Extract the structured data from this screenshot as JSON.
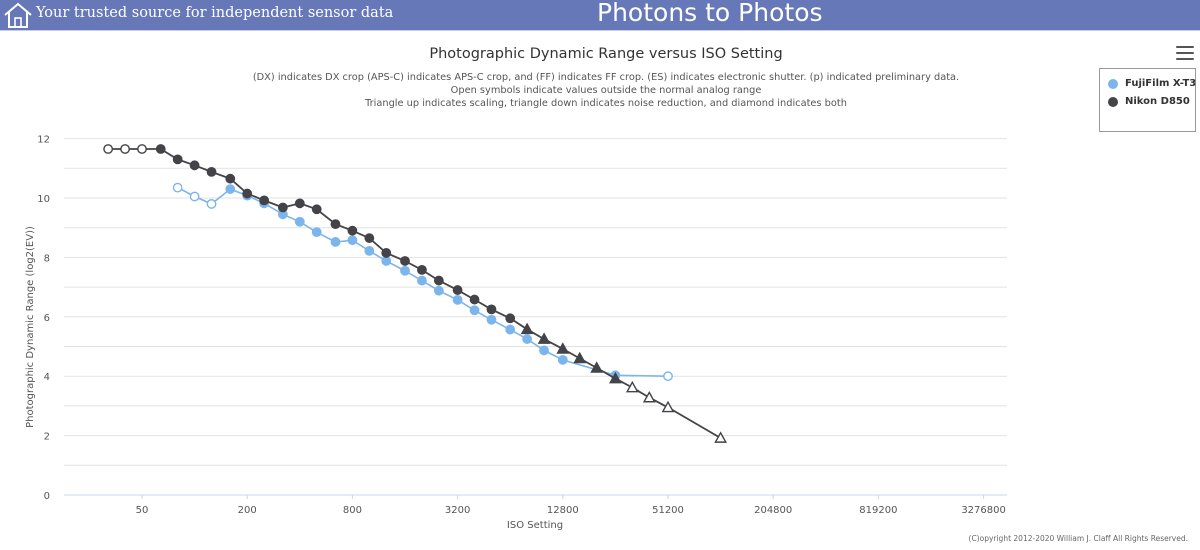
{
  "header": {
    "tagline": "Your trusted source for independent sensor data",
    "site_title": "Photons to Photos",
    "home_icon": "home-icon",
    "background_color": "#6678b8"
  },
  "menu_icon": "hamburger-menu-icon",
  "copyright": "(C)opyright 2012-2020 William J. Claff All Rights Reserved.",
  "chart_data": {
    "type": "line",
    "title": "Photographic Dynamic Range versus ISO Setting",
    "subtitle": [
      "(DX) indicates DX crop (APS-C) indicates APS-C crop, and (FF) indicates FF crop. (ES) indicates electronic shutter. (p) indicated preliminary data.",
      "Open symbols indicate values outside the normal analog range",
      "Triangle up indicates scaling, triangle down indicates noise reduction, and diamond indicates both"
    ],
    "xlabel": "ISO Setting",
    "ylabel": "Photographic Dynamic Range (log2(EV))",
    "x_scale": "log2",
    "x_ticks": [
      "50",
      "200",
      "800",
      "3200",
      "12800",
      "51200",
      "204800",
      "819200",
      "3276800"
    ],
    "y_ticks": [
      "0",
      "2",
      "4",
      "6",
      "8",
      "10",
      "12"
    ],
    "ylim": [
      0,
      12
    ],
    "grid": true,
    "legend_position": "top-right",
    "series": [
      {
        "name": "FujiFilm X-T3",
        "color": "#7cb5ec",
        "points": [
          {
            "iso": 80,
            "value": 10.35,
            "marker": "open-circle"
          },
          {
            "iso": 100,
            "value": 10.05,
            "marker": "open-circle"
          },
          {
            "iso": 125,
            "value": 9.8,
            "marker": "open-circle"
          },
          {
            "iso": 160,
            "value": 10.3,
            "marker": "circle"
          },
          {
            "iso": 200,
            "value": 10.08,
            "marker": "circle"
          },
          {
            "iso": 250,
            "value": 9.82,
            "marker": "circle"
          },
          {
            "iso": 320,
            "value": 9.45,
            "marker": "circle"
          },
          {
            "iso": 400,
            "value": 9.2,
            "marker": "circle"
          },
          {
            "iso": 500,
            "value": 8.85,
            "marker": "circle"
          },
          {
            "iso": 640,
            "value": 8.52,
            "marker": "circle"
          },
          {
            "iso": 800,
            "value": 8.58,
            "marker": "circle"
          },
          {
            "iso": 1000,
            "value": 8.22,
            "marker": "circle"
          },
          {
            "iso": 1250,
            "value": 7.88,
            "marker": "circle"
          },
          {
            "iso": 1600,
            "value": 7.55,
            "marker": "circle"
          },
          {
            "iso": 2000,
            "value": 7.22,
            "marker": "circle"
          },
          {
            "iso": 2500,
            "value": 6.88,
            "marker": "circle"
          },
          {
            "iso": 3200,
            "value": 6.57,
            "marker": "circle"
          },
          {
            "iso": 4000,
            "value": 6.22,
            "marker": "circle"
          },
          {
            "iso": 5000,
            "value": 5.9,
            "marker": "circle"
          },
          {
            "iso": 6400,
            "value": 5.57,
            "marker": "circle"
          },
          {
            "iso": 8000,
            "value": 5.25,
            "marker": "circle"
          },
          {
            "iso": 10000,
            "value": 4.87,
            "marker": "circle"
          },
          {
            "iso": 12800,
            "value": 4.55,
            "marker": "circle"
          },
          {
            "iso": 25600,
            "value": 4.03,
            "marker": "circle"
          },
          {
            "iso": 51200,
            "value": 4.0,
            "marker": "open-circle"
          }
        ]
      },
      {
        "name": "Nikon D850",
        "color": "#434348",
        "points": [
          {
            "iso": 32,
            "value": 11.65,
            "marker": "open-circle"
          },
          {
            "iso": 40,
            "value": 11.65,
            "marker": "open-circle"
          },
          {
            "iso": 50,
            "value": 11.65,
            "marker": "open-circle"
          },
          {
            "iso": 64,
            "value": 11.65,
            "marker": "circle"
          },
          {
            "iso": 80,
            "value": 11.3,
            "marker": "circle"
          },
          {
            "iso": 100,
            "value": 11.1,
            "marker": "circle"
          },
          {
            "iso": 125,
            "value": 10.88,
            "marker": "circle"
          },
          {
            "iso": 160,
            "value": 10.65,
            "marker": "circle"
          },
          {
            "iso": 200,
            "value": 10.15,
            "marker": "circle"
          },
          {
            "iso": 250,
            "value": 9.92,
            "marker": "circle"
          },
          {
            "iso": 320,
            "value": 9.68,
            "marker": "circle"
          },
          {
            "iso": 400,
            "value": 9.82,
            "marker": "circle"
          },
          {
            "iso": 500,
            "value": 9.62,
            "marker": "circle"
          },
          {
            "iso": 640,
            "value": 9.12,
            "marker": "circle"
          },
          {
            "iso": 800,
            "value": 8.9,
            "marker": "circle"
          },
          {
            "iso": 1000,
            "value": 8.65,
            "marker": "circle"
          },
          {
            "iso": 1250,
            "value": 8.15,
            "marker": "circle"
          },
          {
            "iso": 1600,
            "value": 7.88,
            "marker": "circle"
          },
          {
            "iso": 2000,
            "value": 7.58,
            "marker": "circle"
          },
          {
            "iso": 2500,
            "value": 7.22,
            "marker": "circle"
          },
          {
            "iso": 3200,
            "value": 6.9,
            "marker": "circle"
          },
          {
            "iso": 4000,
            "value": 6.58,
            "marker": "circle"
          },
          {
            "iso": 5000,
            "value": 6.25,
            "marker": "circle"
          },
          {
            "iso": 6400,
            "value": 5.95,
            "marker": "circle"
          },
          {
            "iso": 8000,
            "value": 5.58,
            "marker": "triangle-up"
          },
          {
            "iso": 10000,
            "value": 5.25,
            "marker": "triangle-up"
          },
          {
            "iso": 12800,
            "value": 4.92,
            "marker": "triangle-up"
          },
          {
            "iso": 16000,
            "value": 4.6,
            "marker": "triangle-up"
          },
          {
            "iso": 20000,
            "value": 4.28,
            "marker": "triangle-up"
          },
          {
            "iso": 25600,
            "value": 3.92,
            "marker": "triangle-up"
          },
          {
            "iso": 32000,
            "value": 3.62,
            "marker": "open-triangle-up"
          },
          {
            "iso": 40000,
            "value": 3.28,
            "marker": "open-triangle-up"
          },
          {
            "iso": 51200,
            "value": 2.95,
            "marker": "open-triangle-up"
          },
          {
            "iso": 102400,
            "value": 1.92,
            "marker": "open-triangle-up"
          }
        ]
      }
    ]
  }
}
